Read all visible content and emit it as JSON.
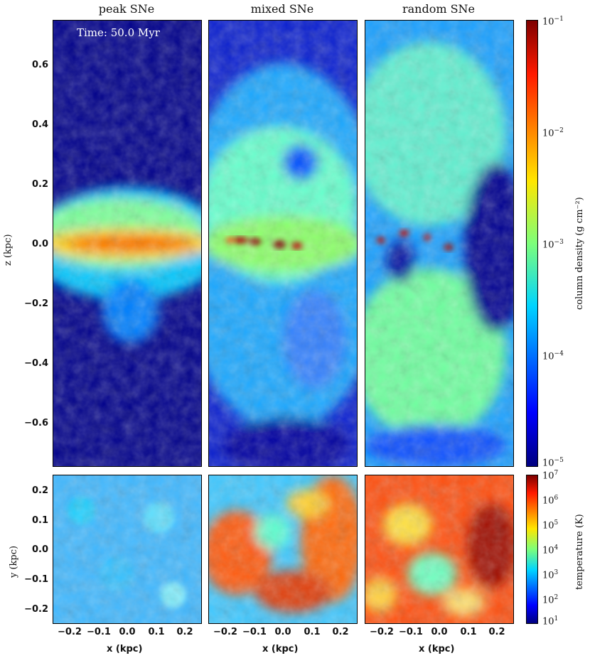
{
  "titles": {
    "peak": "peak SNe",
    "mixed": "mixed SNe",
    "random": "random SNe"
  },
  "time_label": "Time: 50.0 Myr",
  "top_yaxis": {
    "label": "z (kpc)",
    "ticks": [
      "0.6",
      "0.4",
      "0.2",
      "0.0",
      "−0.2",
      "−0.4",
      "−0.6"
    ]
  },
  "bottom_yaxis": {
    "label": "y (kpc)",
    "ticks": [
      "0.2",
      "0.1",
      "0.0",
      "−0.1",
      "−0.2"
    ]
  },
  "xaxis": {
    "label": "x (kpc)",
    "ticks": [
      "−0.2",
      "−0.1",
      "0.0",
      "0.1",
      "0.2"
    ]
  },
  "density_colorbar": {
    "label": "column density (g cm⁻²)",
    "ticks": [
      {
        "base": "10",
        "exp": "−1"
      },
      {
        "base": "10",
        "exp": "−2"
      },
      {
        "base": "10",
        "exp": "−3"
      },
      {
        "base": "10",
        "exp": "−4"
      },
      {
        "base": "10",
        "exp": "−5"
      }
    ]
  },
  "temperature_colorbar": {
    "label": "temperature (K)",
    "ticks": [
      {
        "base": "10",
        "exp": "7"
      },
      {
        "base": "10",
        "exp": "6"
      },
      {
        "base": "10",
        "exp": "5"
      },
      {
        "base": "10",
        "exp": "4"
      },
      {
        "base": "10",
        "exp": "3"
      },
      {
        "base": "10",
        "exp": "2"
      },
      {
        "base": "10",
        "exp": "1"
      }
    ]
  },
  "colormap": "jet"
}
